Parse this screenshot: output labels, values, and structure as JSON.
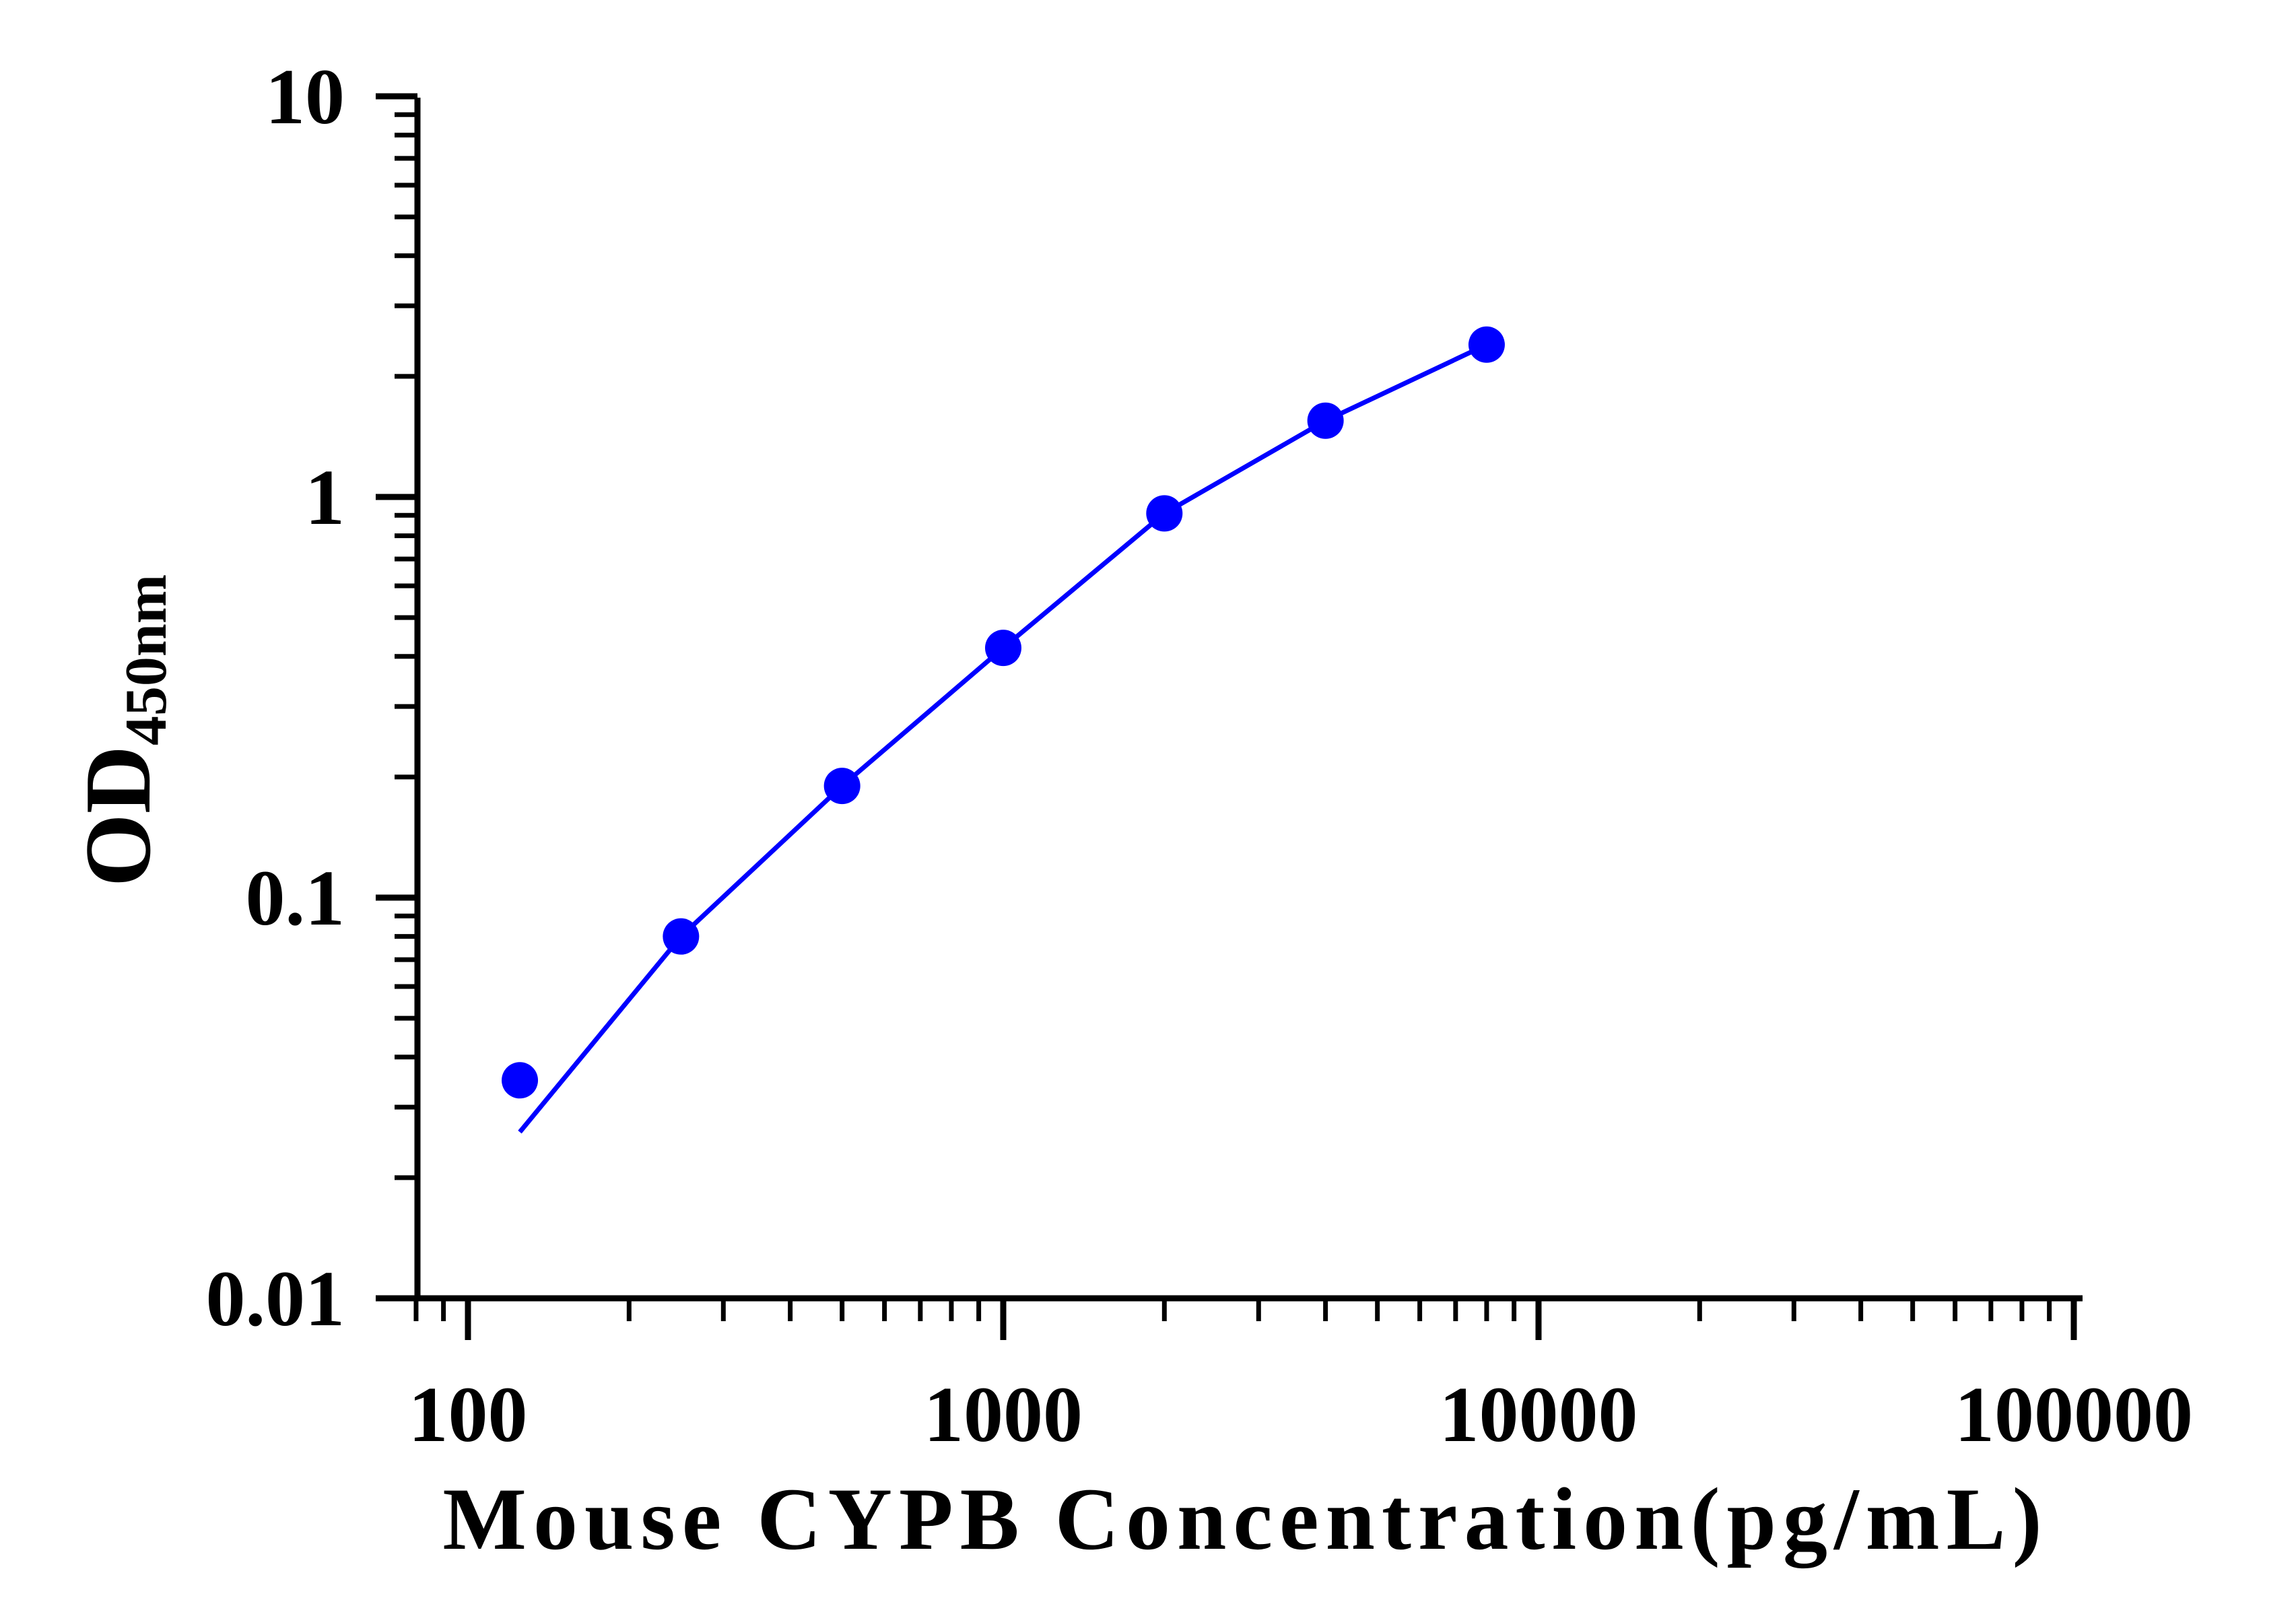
{
  "chart_data": {
    "type": "scatter",
    "xscale": "log",
    "yscale": "log",
    "xlim": [
      80,
      100000
    ],
    "ylim": [
      0.01,
      10
    ],
    "xticks": [
      "100",
      "1000",
      "10000",
      "100000"
    ],
    "yticks": [
      "10",
      "1",
      "0.1",
      "0.01"
    ],
    "xlabel": "Mouse CYPB Concentration(pg/mL)",
    "ylabel": "OD",
    "ylabel_subscript": "450nm",
    "grid": false,
    "legend": "none",
    "colors": {
      "series": "#0000ff",
      "axis": "#000000"
    },
    "series": [
      {
        "points": [
          {
            "x": 125,
            "y": 0.035
          },
          {
            "x": 250,
            "y": 0.08
          },
          {
            "x": 500,
            "y": 0.19
          },
          {
            "x": 1000,
            "y": 0.42
          },
          {
            "x": 2000,
            "y": 0.91
          },
          {
            "x": 4000,
            "y": 1.55
          },
          {
            "x": 8000,
            "y": 2.4
          }
        ],
        "fit_curve": [
          {
            "x": 125,
            "y": 0.026
          },
          {
            "x": 250,
            "y": 0.08
          },
          {
            "x": 500,
            "y": 0.19
          },
          {
            "x": 1000,
            "y": 0.42
          },
          {
            "x": 2000,
            "y": 0.91
          },
          {
            "x": 4000,
            "y": 1.55
          },
          {
            "x": 8000,
            "y": 2.4
          }
        ]
      }
    ]
  }
}
